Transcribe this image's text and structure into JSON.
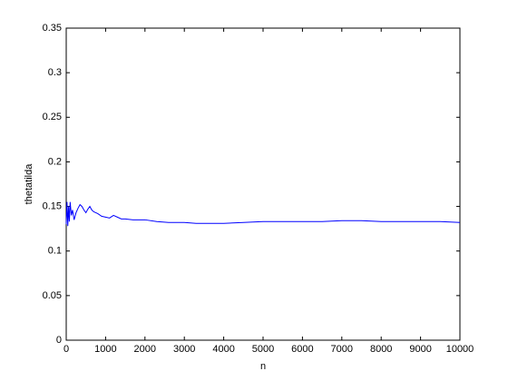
{
  "chart_data": {
    "type": "line",
    "x_label": "n",
    "y_label": "thetatilda",
    "x": [
      0,
      20,
      40,
      60,
      80,
      100,
      130,
      160,
      200,
      250,
      300,
      350,
      400,
      450,
      500,
      550,
      600,
      650,
      700,
      800,
      900,
      1000,
      1100,
      1200,
      1300,
      1400,
      1500,
      1700,
      2000,
      2300,
      2600,
      3000,
      3300,
      3600,
      4000,
      4500,
      5000,
      5500,
      6000,
      6500,
      7000,
      7500,
      8000,
      8500,
      9000,
      9500,
      10000
    ],
    "series": [
      {
        "name": "thetatilda",
        "color": "#0000ff",
        "values": [
          0.13,
          0.155,
          0.128,
          0.15,
          0.133,
          0.155,
          0.14,
          0.146,
          0.135,
          0.143,
          0.148,
          0.152,
          0.15,
          0.146,
          0.143,
          0.147,
          0.15,
          0.146,
          0.144,
          0.142,
          0.139,
          0.138,
          0.137,
          0.14,
          0.138,
          0.136,
          0.136,
          0.135,
          0.135,
          0.133,
          0.132,
          0.132,
          0.131,
          0.131,
          0.131,
          0.132,
          0.133,
          0.133,
          0.133,
          0.133,
          0.134,
          0.134,
          0.133,
          0.133,
          0.133,
          0.133,
          0.132
        ]
      }
    ],
    "xlim": [
      0,
      10000
    ],
    "xticks": [
      0,
      1000,
      2000,
      3000,
      4000,
      5000,
      6000,
      7000,
      8000,
      9000,
      10000
    ],
    "ylim": [
      0,
      0.35
    ],
    "yticks": [
      0,
      0.05,
      0.1,
      0.15,
      0.2,
      0.25,
      0.3,
      0.35
    ],
    "grid": false
  }
}
